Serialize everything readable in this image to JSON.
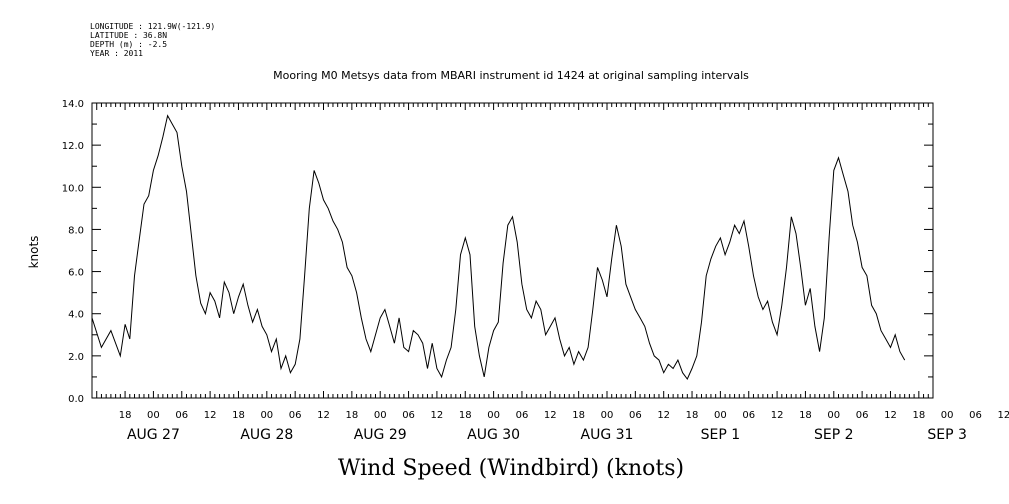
{
  "metadata": {
    "longitude": "LONGITUDE : 121.9W(-121.9)",
    "latitude": "LATITUDE : 36.8N",
    "depth": "DEPTH (m) : -2.5",
    "year": "YEAR : 2011"
  },
  "chart_data": {
    "type": "line",
    "title": "Mooring M0 Metsys data from MBARI instrument id 1424 at original sampling intervals",
    "xlabel": "Wind Speed (Windbird) (knots)",
    "ylabel": "knots",
    "ylim": [
      0,
      14
    ],
    "xlim_hours_from_aug26_00": [
      11,
      189
    ],
    "y_ticks": [
      "0.0",
      "2.0",
      "4.0",
      "6.0",
      "8.0",
      "10.0",
      "12.0",
      "14.0"
    ],
    "x_hour_labels": [
      {
        "hour": 18,
        "label": "18"
      },
      {
        "hour": 24,
        "label": "00"
      },
      {
        "hour": 30,
        "label": "06"
      },
      {
        "hour": 36,
        "label": "12"
      },
      {
        "hour": 42,
        "label": "18"
      },
      {
        "hour": 48,
        "label": "00"
      },
      {
        "hour": 54,
        "label": "06"
      },
      {
        "hour": 60,
        "label": "12"
      },
      {
        "hour": 66,
        "label": "18"
      },
      {
        "hour": 72,
        "label": "00"
      },
      {
        "hour": 78,
        "label": "06"
      },
      {
        "hour": 84,
        "label": "12"
      },
      {
        "hour": 90,
        "label": "18"
      },
      {
        "hour": 96,
        "label": "00"
      },
      {
        "hour": 102,
        "label": "06"
      },
      {
        "hour": 108,
        "label": "12"
      },
      {
        "hour": 114,
        "label": "18"
      },
      {
        "hour": 120,
        "label": "00"
      },
      {
        "hour": 126,
        "label": "06"
      },
      {
        "hour": 132,
        "label": "12"
      },
      {
        "hour": 138,
        "label": "18"
      },
      {
        "hour": 144,
        "label": "00"
      },
      {
        "hour": 150,
        "label": "06"
      },
      {
        "hour": 156,
        "label": "12"
      },
      {
        "hour": 162,
        "label": "18"
      },
      {
        "hour": 168,
        "label": "00"
      },
      {
        "hour": 174,
        "label": "06"
      },
      {
        "hour": 180,
        "label": "12"
      },
      {
        "hour": 186,
        "label": "18"
      },
      {
        "hour": 192,
        "label": "00"
      },
      {
        "hour": 198,
        "label": "06"
      },
      {
        "hour": 204,
        "label": "12"
      }
    ],
    "x_day_labels": [
      {
        "hour": 24,
        "label": "AUG 27"
      },
      {
        "hour": 48,
        "label": "AUG 28"
      },
      {
        "hour": 72,
        "label": "AUG 29"
      },
      {
        "hour": 96,
        "label": "AUG 30"
      },
      {
        "hour": 120,
        "label": "AUG 31"
      },
      {
        "hour": 144,
        "label": "SEP  1"
      },
      {
        "hour": 168,
        "label": "SEP  2"
      },
      {
        "hour": 192,
        "label": "SEP  3"
      }
    ],
    "series": [
      {
        "points": [
          [
            11,
            3.8
          ],
          [
            13,
            2.4
          ],
          [
            15,
            3.2
          ],
          [
            17,
            2.0
          ],
          [
            18,
            3.5
          ],
          [
            19,
            2.8
          ],
          [
            20,
            5.8
          ],
          [
            21,
            7.5
          ],
          [
            22,
            9.2
          ],
          [
            23,
            9.6
          ],
          [
            24,
            10.8
          ],
          [
            25,
            11.5
          ],
          [
            26,
            12.4
          ],
          [
            27,
            13.4
          ],
          [
            28,
            13.0
          ],
          [
            29,
            12.6
          ],
          [
            30,
            11.0
          ],
          [
            31,
            9.8
          ],
          [
            32,
            7.8
          ],
          [
            33,
            5.8
          ],
          [
            34,
            4.5
          ],
          [
            35,
            4.0
          ],
          [
            36,
            5.0
          ],
          [
            37,
            4.6
          ],
          [
            38,
            3.8
          ],
          [
            39,
            5.5
          ],
          [
            40,
            5.0
          ],
          [
            41,
            4.0
          ],
          [
            42,
            4.8
          ],
          [
            43,
            5.4
          ],
          [
            44,
            4.4
          ],
          [
            45,
            3.6
          ],
          [
            46,
            4.2
          ],
          [
            47,
            3.4
          ],
          [
            48,
            3.0
          ],
          [
            49,
            2.2
          ],
          [
            50,
            2.8
          ],
          [
            51,
            1.4
          ],
          [
            52,
            2.0
          ],
          [
            53,
            1.2
          ],
          [
            54,
            1.6
          ],
          [
            55,
            2.8
          ],
          [
            56,
            5.8
          ],
          [
            57,
            9.0
          ],
          [
            58,
            10.8
          ],
          [
            59,
            10.2
          ],
          [
            60,
            9.4
          ],
          [
            61,
            9.0
          ],
          [
            62,
            8.4
          ],
          [
            63,
            8.0
          ],
          [
            64,
            7.4
          ],
          [
            65,
            6.2
          ],
          [
            66,
            5.8
          ],
          [
            67,
            5.0
          ],
          [
            68,
            3.8
          ],
          [
            69,
            2.8
          ],
          [
            70,
            2.2
          ],
          [
            71,
            3.0
          ],
          [
            72,
            3.8
          ],
          [
            73,
            4.2
          ],
          [
            74,
            3.4
          ],
          [
            75,
            2.6
          ],
          [
            76,
            3.8
          ],
          [
            77,
            2.4
          ],
          [
            78,
            2.2
          ],
          [
            79,
            3.2
          ],
          [
            80,
            3.0
          ],
          [
            81,
            2.6
          ],
          [
            82,
            1.4
          ],
          [
            83,
            2.6
          ],
          [
            84,
            1.4
          ],
          [
            85,
            1.0
          ],
          [
            86,
            1.8
          ],
          [
            87,
            2.4
          ],
          [
            88,
            4.2
          ],
          [
            89,
            6.8
          ],
          [
            90,
            7.6
          ],
          [
            91,
            6.8
          ],
          [
            92,
            3.4
          ],
          [
            93,
            2.0
          ],
          [
            94,
            1.0
          ],
          [
            95,
            2.4
          ],
          [
            96,
            3.2
          ],
          [
            97,
            3.6
          ],
          [
            98,
            6.4
          ],
          [
            99,
            8.2
          ],
          [
            100,
            8.6
          ],
          [
            101,
            7.4
          ],
          [
            102,
            5.4
          ],
          [
            103,
            4.2
          ],
          [
            104,
            3.8
          ],
          [
            105,
            4.6
          ],
          [
            106,
            4.2
          ],
          [
            107,
            3.0
          ],
          [
            108,
            3.4
          ],
          [
            109,
            3.8
          ],
          [
            110,
            2.8
          ],
          [
            111,
            2.0
          ],
          [
            112,
            2.4
          ],
          [
            113,
            1.6
          ],
          [
            114,
            2.2
          ],
          [
            115,
            1.8
          ],
          [
            116,
            2.4
          ],
          [
            117,
            4.2
          ],
          [
            118,
            6.2
          ],
          [
            119,
            5.6
          ],
          [
            120,
            4.8
          ],
          [
            121,
            6.6
          ],
          [
            122,
            8.2
          ],
          [
            123,
            7.2
          ],
          [
            124,
            5.4
          ],
          [
            125,
            4.8
          ],
          [
            126,
            4.2
          ],
          [
            127,
            3.8
          ],
          [
            128,
            3.4
          ],
          [
            129,
            2.6
          ],
          [
            130,
            2.0
          ],
          [
            131,
            1.8
          ],
          [
            132,
            1.2
          ],
          [
            133,
            1.6
          ],
          [
            134,
            1.4
          ],
          [
            135,
            1.8
          ],
          [
            136,
            1.2
          ],
          [
            137,
            0.9
          ],
          [
            138,
            1.4
          ],
          [
            139,
            2.0
          ],
          [
            140,
            3.6
          ],
          [
            141,
            5.8
          ],
          [
            142,
            6.6
          ],
          [
            143,
            7.2
          ],
          [
            144,
            7.6
          ],
          [
            145,
            6.8
          ],
          [
            146,
            7.4
          ],
          [
            147,
            8.2
          ],
          [
            148,
            7.8
          ],
          [
            149,
            8.4
          ],
          [
            150,
            7.2
          ],
          [
            151,
            5.8
          ],
          [
            152,
            4.8
          ],
          [
            153,
            4.2
          ],
          [
            154,
            4.6
          ],
          [
            155,
            3.6
          ],
          [
            156,
            3.0
          ],
          [
            157,
            4.4
          ],
          [
            158,
            6.2
          ],
          [
            159,
            8.6
          ],
          [
            160,
            7.8
          ],
          [
            161,
            6.2
          ],
          [
            162,
            4.4
          ],
          [
            163,
            5.2
          ],
          [
            164,
            3.4
          ],
          [
            165,
            2.2
          ],
          [
            166,
            3.8
          ],
          [
            167,
            7.6
          ],
          [
            168,
            10.8
          ],
          [
            169,
            11.4
          ],
          [
            170,
            10.6
          ],
          [
            171,
            9.8
          ],
          [
            172,
            8.2
          ],
          [
            173,
            7.4
          ],
          [
            174,
            6.2
          ],
          [
            175,
            5.8
          ],
          [
            176,
            4.4
          ],
          [
            177,
            4.0
          ],
          [
            178,
            3.2
          ],
          [
            179,
            2.8
          ],
          [
            180,
            2.4
          ],
          [
            181,
            3.0
          ],
          [
            182,
            2.2
          ],
          [
            183,
            1.8
          ]
        ]
      }
    ]
  }
}
